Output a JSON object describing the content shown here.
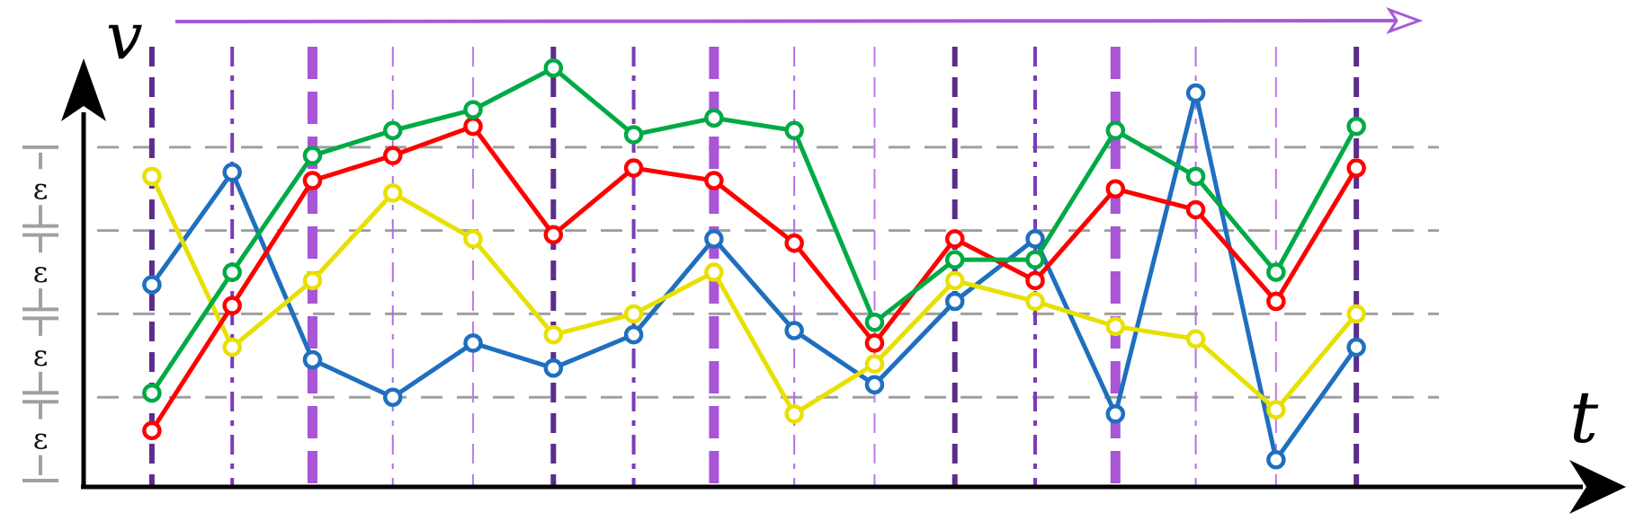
{
  "chart_data": {
    "type": "line",
    "xlabel": "t",
    "ylabel": "v",
    "band_label": "ε",
    "band_count": 4,
    "x": [
      1,
      2,
      3,
      4,
      5,
      6,
      7,
      8,
      9,
      10,
      11,
      12,
      13,
      14,
      15,
      16
    ],
    "xlim": [
      0.15,
      19
    ],
    "ylim": [
      0,
      4.85
    ],
    "grid": true,
    "levels": [
      1,
      2,
      3,
      4
    ],
    "series": [
      {
        "color": "#1f6fbf",
        "values": [
          2.35,
          3.7,
          1.45,
          1.0,
          1.65,
          1.35,
          1.75,
          2.9,
          1.8,
          1.15,
          2.15,
          2.9,
          0.8,
          4.65,
          0.25,
          1.6
        ]
      },
      {
        "color": "#e8e000",
        "values": [
          3.65,
          1.6,
          2.4,
          3.45,
          2.9,
          1.75,
          2.0,
          2.5,
          0.8,
          1.4,
          2.4,
          2.15,
          1.85,
          1.7,
          0.85,
          2.0
        ]
      },
      {
        "color": "#ff0000",
        "values": [
          0.6,
          2.1,
          3.6,
          3.9,
          4.25,
          2.95,
          3.75,
          3.6,
          2.85,
          1.65,
          2.9,
          2.4,
          3.5,
          3.25,
          2.15,
          3.75
        ]
      },
      {
        "color": "#00aa44",
        "values": [
          1.05,
          2.5,
          3.9,
          4.2,
          4.45,
          4.95,
          4.15,
          4.35,
          4.2,
          1.9,
          2.65,
          2.65,
          4.2,
          3.65,
          2.5,
          4.25
        ]
      }
    ],
    "markers": [
      {
        "x": 1,
        "style": "A"
      },
      {
        "x": 2,
        "style": "B"
      },
      {
        "x": 3,
        "style": "C"
      },
      {
        "x": 4,
        "style": "D"
      },
      {
        "x": 5,
        "style": "E"
      },
      {
        "x": 6,
        "style": "A"
      },
      {
        "x": 7,
        "style": "B"
      },
      {
        "x": 8,
        "style": "C"
      },
      {
        "x": 9,
        "style": "D"
      },
      {
        "x": 10,
        "style": "E"
      },
      {
        "x": 11,
        "style": "A"
      },
      {
        "x": 12,
        "style": "B"
      },
      {
        "x": 13,
        "style": "C"
      },
      {
        "x": 14,
        "style": "D"
      },
      {
        "x": 15,
        "style": "E"
      },
      {
        "x": 16,
        "style": "A"
      }
    ],
    "marker_styles": {
      "A": {
        "color": "#5b2d8c",
        "dash": "dash",
        "weight": "medium"
      },
      "B": {
        "color": "#7a3cb8",
        "dash": "dashdot",
        "weight": "thin"
      },
      "C": {
        "color": "#a855d6",
        "dash": "longdash",
        "weight": "thick"
      },
      "D": {
        "color": "#b26de6",
        "dash": "dashdot",
        "weight": "hairline"
      },
      "E": {
        "color": "#c07ae8",
        "dash": "dash",
        "weight": "hairline"
      }
    },
    "time_arrow_color": "#a75ad6",
    "band_color": "#a0a0a0",
    "grid_color": "#a0a0a0"
  }
}
